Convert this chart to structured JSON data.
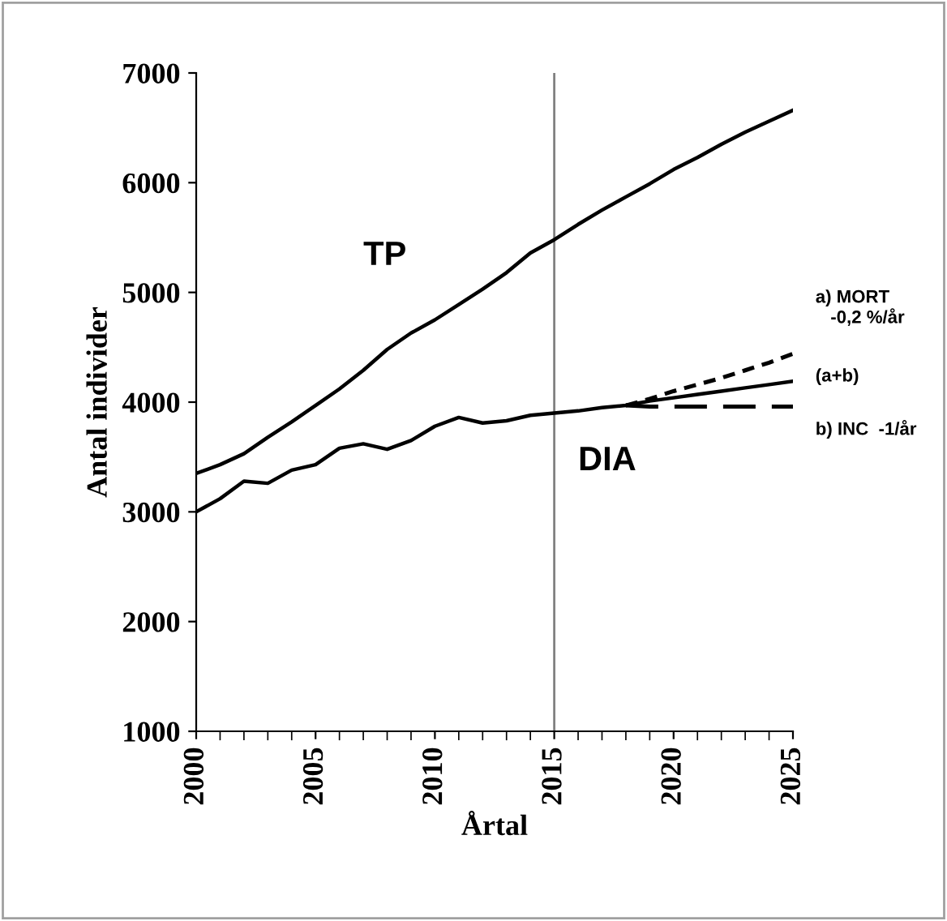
{
  "chart_data": {
    "type": "line",
    "xlabel": "Årtal",
    "ylabel": "Antal individer",
    "xlim": [
      2000,
      2025
    ],
    "xticks": [
      2000,
      2005,
      2010,
      2015,
      2020,
      2025
    ],
    "ylim": [
      1000,
      7000
    ],
    "yticks": [
      1000,
      2000,
      3000,
      4000,
      5000,
      6000,
      7000
    ],
    "grid": false,
    "legend": false,
    "marker": "none",
    "ref_lines": [
      {
        "axis": "x",
        "value": 2015,
        "color": "#808080"
      }
    ],
    "series": [
      {
        "name": "TP",
        "color": "#000000",
        "line_style": "solid",
        "x": [
          2000,
          2001,
          2002,
          2003,
          2004,
          2005,
          2006,
          2007,
          2008,
          2009,
          2010,
          2011,
          2012,
          2013,
          2014,
          2015,
          2016,
          2017,
          2018,
          2019,
          2020,
          2021,
          2022,
          2023,
          2024,
          2025
        ],
        "values": [
          3350,
          3430,
          3530,
          3680,
          3820,
          3970,
          4120,
          4290,
          4480,
          4630,
          4750,
          4890,
          5030,
          5180,
          5360,
          5480,
          5620,
          5750,
          5870,
          5990,
          6120,
          6230,
          6350,
          6460,
          6560,
          6660
        ]
      },
      {
        "name": "DIA",
        "color": "#000000",
        "line_style": "solid",
        "x": [
          2000,
          2001,
          2002,
          2003,
          2004,
          2005,
          2006,
          2007,
          2008,
          2009,
          2010,
          2011,
          2012,
          2013,
          2014,
          2015,
          2016,
          2017,
          2018,
          2019,
          2020,
          2021,
          2022,
          2023,
          2024,
          2025
        ],
        "values": [
          3000,
          3120,
          3280,
          3260,
          3380,
          3430,
          3580,
          3620,
          3570,
          3650,
          3780,
          3860,
          3810,
          3830,
          3880,
          3900,
          3920,
          3950,
          3970,
          4010,
          4040,
          4070,
          4100,
          4130,
          4160,
          4190
        ]
      },
      {
        "name": "a) MORT\n   -0,2 %/år",
        "color": "#000000",
        "line_style": "dotted",
        "x": [
          2018,
          2019,
          2020,
          2021,
          2022,
          2023,
          2024,
          2025
        ],
        "values": [
          3970,
          4030,
          4100,
          4160,
          4220,
          4290,
          4360,
          4440
        ]
      },
      {
        "name": "b) INC  -1/år",
        "color": "#000000",
        "line_style": "dashed",
        "x": [
          2018,
          2019,
          2020,
          2021,
          2022,
          2023,
          2024,
          2025
        ],
        "values": [
          3970,
          3960,
          3960,
          3960,
          3960,
          3960,
          3960,
          3960
        ]
      }
    ],
    "annotations": [
      {
        "text": "(a+b)",
        "x": 2025,
        "y": 4190
      }
    ]
  }
}
